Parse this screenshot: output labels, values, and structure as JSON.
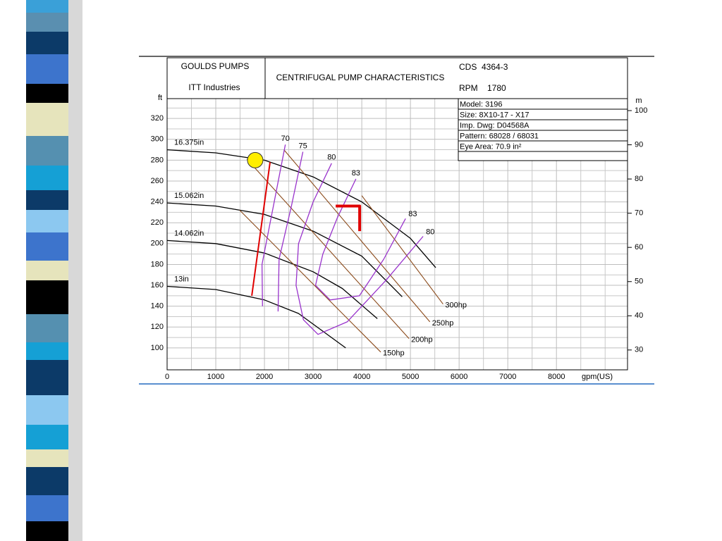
{
  "chart_data": {
    "type": "line",
    "maker": "GOULDS PUMPS",
    "company": "ITT Industries",
    "title": "CENTRIFUGAL PUMP CHARACTERISTICS",
    "curve_no": "CDS  4364-3",
    "rpm": "RPM    1780",
    "info": [
      "Model: 3196",
      "Size: 8X10-17 - X17",
      "Imp. Dwg: D04568A",
      "Pattern: 68028 / 68031",
      "Eye Area: 70.9 in²"
    ],
    "ylabel": "ft",
    "y2label": "m",
    "xlabel": "gpm(US)",
    "xlim": [
      0,
      9460
    ],
    "ylim": [
      79,
      339
    ],
    "y2lim": [
      24.2,
      103.5
    ],
    "xticks": [
      0,
      1000,
      2000,
      3000,
      4000,
      5000,
      6000,
      7000,
      8000
    ],
    "yticks": [
      100,
      120,
      140,
      160,
      180,
      200,
      220,
      240,
      260,
      280,
      300,
      320
    ],
    "y2ticks": [
      30,
      40,
      50,
      60,
      70,
      80,
      90,
      100
    ],
    "xminor": [
      500,
      1500,
      2500,
      3500,
      4500,
      5500,
      6500,
      7500,
      8500,
      9000
    ],
    "yminor": [
      90,
      110,
      130,
      150,
      170,
      190,
      210,
      230,
      250,
      270,
      290,
      310,
      330
    ],
    "grid": true,
    "impeller_curves": [
      {
        "name": "16.375in",
        "color": "#000000",
        "x": [
          0,
          1000,
          2000,
          3000,
          4000,
          5000,
          5520
        ],
        "values": [
          290,
          287,
          280,
          264,
          240,
          205,
          177
        ]
      },
      {
        "name": "15.062in",
        "color": "#000000",
        "x": [
          0,
          1000,
          2000,
          3000,
          4000,
          4830
        ],
        "values": [
          239,
          236,
          228,
          212,
          188,
          149
        ]
      },
      {
        "name": "14.062in",
        "color": "#000000",
        "x": [
          0,
          1000,
          2000,
          3000,
          3600,
          4320
        ],
        "values": [
          203,
          200,
          191,
          173,
          157,
          128
        ]
      },
      {
        "name": "13in",
        "color": "#000000",
        "x": [
          0,
          1000,
          2000,
          2700,
          3670
        ],
        "values": [
          159,
          156,
          146,
          133,
          100
        ]
      }
    ],
    "power_curves": [
      {
        "name": "300hp",
        "color": "#8b4a1a",
        "x": [
          4000,
          5670
        ],
        "values": [
          246,
          142
        ]
      },
      {
        "name": "250hp",
        "color": "#8b4a1a",
        "x": [
          2400,
          5400
        ],
        "values": [
          290,
          125
        ]
      },
      {
        "name": "200hp",
        "color": "#8b4a1a",
        "x": [
          1640,
          4970
        ],
        "values": [
          281,
          109
        ]
      },
      {
        "name": "150hp",
        "color": "#8b4a1a",
        "x": [
          1490,
          4390
        ],
        "values": [
          232,
          96
        ]
      }
    ],
    "efficiency_curves": [
      {
        "name": "70",
        "color": "#9933cc",
        "x": [
          2430,
          2200,
          1950,
          1960
        ],
        "values": [
          295,
          240,
          180,
          140
        ]
      },
      {
        "name": "75",
        "color": "#9933cc",
        "x": [
          2790,
          2550,
          2300,
          2280
        ],
        "values": [
          288,
          235,
          185,
          135
        ]
      },
      {
        "name": "80",
        "color": "#9933cc",
        "x": [
          3380,
          3000,
          2700,
          2650,
          2800,
          3100,
          3700,
          4500,
          5260
        ],
        "values": [
          277,
          240,
          200,
          160,
          127,
          113,
          125,
          165,
          207
        ]
      },
      {
        "name": "83",
        "color": "#9933cc",
        "x": [
          3880,
          3500,
          3200,
          3050,
          3350,
          3950,
          4450,
          4900
        ],
        "values": [
          262,
          225,
          190,
          160,
          146,
          150,
          185,
          224
        ]
      }
    ],
    "markers": [
      {
        "color": "#e00000",
        "x": [
          1740,
          2115
        ],
        "values": [
          150,
          278
        ]
      },
      {
        "color": "#e00000",
        "x": [
          3464,
          3957,
          3957
        ],
        "values": [
          236,
          236,
          212
        ]
      },
      {
        "color": "#ffee00",
        "x": [
          1810
        ],
        "values": [
          280
        ]
      }
    ]
  }
}
